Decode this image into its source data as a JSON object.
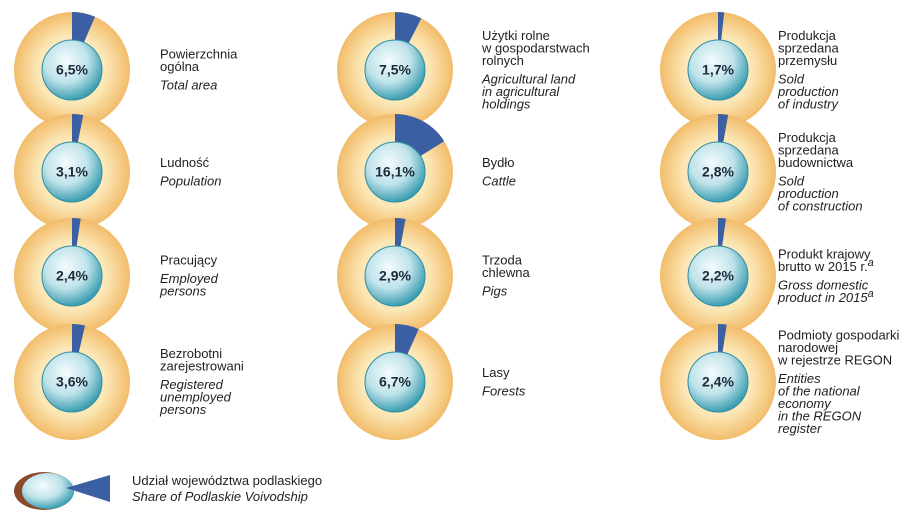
{
  "chart_data": [
    {
      "type": "pie",
      "title": [
        "Powierzchnia",
        "ogólna"
      ],
      "subtitle": [
        "Total area"
      ],
      "values": [
        6.5
      ],
      "value_labels": [
        "6,5%"
      ],
      "color": "#3b5fa3"
    },
    {
      "type": "pie",
      "title": [
        "Ludność"
      ],
      "subtitle": [
        "Population"
      ],
      "values": [
        3.1
      ],
      "value_labels": [
        "3,1%"
      ],
      "color": "#3b5fa3"
    },
    {
      "type": "pie",
      "title": [
        "Pracujący"
      ],
      "subtitle": [
        "Employed",
        "persons"
      ],
      "values": [
        2.4
      ],
      "value_labels": [
        "2,4%"
      ],
      "color": "#3b5fa3"
    },
    {
      "type": "pie",
      "title": [
        "Bezrobotni",
        "zarejestrowani"
      ],
      "subtitle": [
        "Registered",
        "unemployed",
        "persons"
      ],
      "values": [
        3.6
      ],
      "value_labels": [
        "3,6%"
      ],
      "color": "#3b5fa3"
    },
    {
      "type": "pie",
      "title": [
        "Użytki rolne",
        "w gospodarstwach",
        "rolnych"
      ],
      "subtitle": [
        "Agricultural land",
        "in agricultural",
        "holdings"
      ],
      "values": [
        7.5
      ],
      "value_labels": [
        "7,5%"
      ],
      "color": "#3b5fa3"
    },
    {
      "type": "pie",
      "title": [
        "Bydło"
      ],
      "subtitle": [
        "Cattle"
      ],
      "values": [
        16.1
      ],
      "value_labels": [
        "16,1%"
      ],
      "color": "#3b5fa3"
    },
    {
      "type": "pie",
      "title": [
        "Trzoda",
        "chlewna"
      ],
      "subtitle": [
        "Pigs"
      ],
      "values": [
        2.9
      ],
      "value_labels": [
        "2,9%"
      ],
      "color": "#3b5fa3"
    },
    {
      "type": "pie",
      "title": [
        "Lasy"
      ],
      "subtitle": [
        "Forests"
      ],
      "values": [
        6.7
      ],
      "value_labels": [
        "6,7%"
      ],
      "color": "#3b5fa3"
    },
    {
      "type": "pie",
      "title": [
        "Produkcja",
        "sprzedana",
        "przemysłu"
      ],
      "subtitle": [
        "Sold",
        "production",
        "of industry"
      ],
      "values": [
        1.7
      ],
      "value_labels": [
        "1,7%"
      ],
      "color": "#3b5fa3"
    },
    {
      "type": "pie",
      "title": [
        "Produkcja",
        "sprzedana",
        "budownictwa"
      ],
      "subtitle": [
        "Sold",
        "production",
        "of construction"
      ],
      "values": [
        2.8
      ],
      "value_labels": [
        "2,8%"
      ],
      "color": "#3b5fa3"
    },
    {
      "type": "pie",
      "title": [
        "Produkt krajowy",
        "brutto w 2015 r."
      ],
      "subtitle": [
        "Gross domestic",
        "product in 2015"
      ],
      "note": "a",
      "values": [
        2.2
      ],
      "value_labels": [
        "2,2%"
      ],
      "color": "#3b5fa3"
    },
    {
      "type": "pie",
      "title": [
        "Podmioty gospodarki",
        "narodowej",
        "w rejestrze REGON"
      ],
      "subtitle": [
        "Entities",
        "of the national",
        "economy",
        "in the REGON",
        "register"
      ],
      "values": [
        2.4
      ],
      "value_labels": [
        "2,4%"
      ],
      "color": "#3b5fa3"
    }
  ],
  "legend": {
    "title": "Udział województwa podlaskiego",
    "subtitle": "Share of Podlaskie Voivodship"
  }
}
